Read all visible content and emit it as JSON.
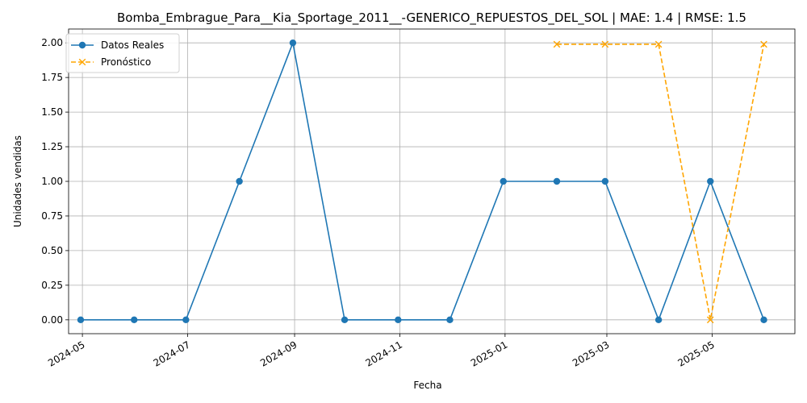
{
  "chart_data": {
    "type": "line",
    "title": "Bomba_Embrague_Para__Kia_Sportage_2011__-GENERICO_REPUESTOS_DEL_SOL | MAE: 1.4 | RMSE: 1.5",
    "xlabel": "Fecha",
    "ylabel": "Unidades vendidas",
    "ylim": [
      -0.1,
      2.1
    ],
    "xlim": [
      "2024-04-23",
      "2025-06-18"
    ],
    "y_ticks": [
      "0.00",
      "0.25",
      "0.50",
      "0.75",
      "1.00",
      "1.25",
      "1.50",
      "1.75",
      "2.00"
    ],
    "x_ticks": [
      "2024-05",
      "2024-07",
      "2024-09",
      "2024-11",
      "2025-01",
      "2025-03",
      "2025-05"
    ],
    "grid": true,
    "legend_position": "top-left",
    "series": [
      {
        "name": "Datos Reales",
        "color": "#1f77b4",
        "marker": "circle",
        "line_style": "solid",
        "x": [
          "2024-04-30",
          "2024-05-31",
          "2024-06-30",
          "2024-07-31",
          "2024-08-31",
          "2024-09-30",
          "2024-10-31",
          "2024-11-30",
          "2024-12-31",
          "2025-01-31",
          "2025-02-28",
          "2025-03-31",
          "2025-04-30",
          "2025-05-31"
        ],
        "values": [
          0,
          0,
          0,
          1,
          2,
          0,
          0,
          0,
          1,
          1,
          1,
          0,
          1,
          0
        ]
      },
      {
        "name": "Pronóstico",
        "color": "#ffa500",
        "marker": "x",
        "line_style": "dashed",
        "x": [
          "2025-01-31",
          "2025-02-28",
          "2025-03-31",
          "2025-04-30",
          "2025-05-31"
        ],
        "values": [
          1.99,
          1.99,
          1.99,
          0.0,
          1.99
        ]
      }
    ]
  }
}
